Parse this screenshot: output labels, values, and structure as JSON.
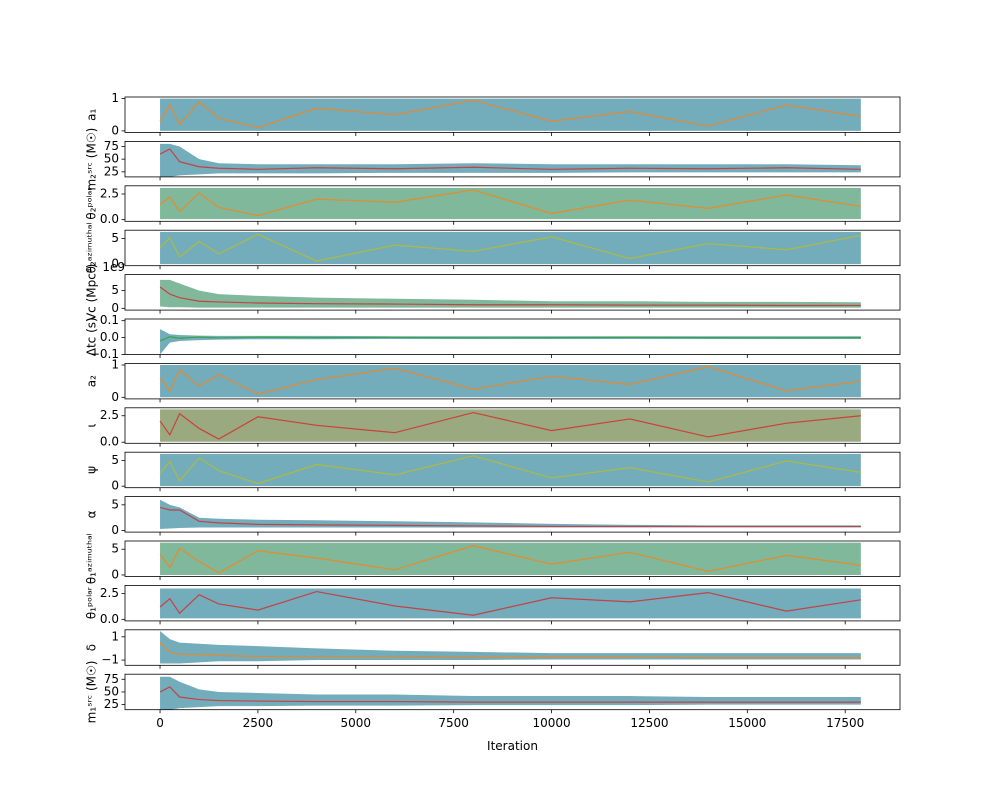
{
  "chart_data": [
    {
      "type": "band",
      "ylabel": "a₁",
      "x": [
        0,
        250,
        500,
        1000,
        1500,
        2500,
        4000,
        6000,
        8000,
        10000,
        12000,
        14000,
        16000,
        17900
      ],
      "upper": [
        1,
        1,
        1,
        1,
        1,
        1,
        1,
        1,
        1,
        1,
        1,
        1,
        1,
        1
      ],
      "lower": [
        0,
        0,
        0,
        0,
        0,
        0,
        0,
        0,
        0,
        0,
        0,
        0,
        0,
        0
      ],
      "values": [
        0.3,
        0.8,
        0.2,
        0.9,
        0.4,
        0.1,
        0.7,
        0.5,
        0.95,
        0.3,
        0.6,
        0.15,
        0.8,
        0.45
      ],
      "color": "#5a9fb0",
      "line_color": "#ff7f0e",
      "ylim": [
        -0.05,
        1.05
      ],
      "yticks": [
        0,
        1
      ]
    },
    {
      "type": "band",
      "ylabel": "m₂ˢʳᶜ (M☉)",
      "x": [
        0,
        250,
        500,
        1000,
        1500,
        2500,
        4000,
        6000,
        8000,
        10000,
        12000,
        14000,
        16000,
        17900
      ],
      "upper": [
        80,
        80,
        75,
        50,
        42,
        40,
        40,
        40,
        42,
        40,
        40,
        40,
        40,
        38
      ],
      "lower": [
        15,
        15,
        18,
        20,
        22,
        22,
        22,
        23,
        23,
        23,
        24,
        24,
        24,
        24
      ],
      "values": [
        60,
        70,
        45,
        35,
        32,
        30,
        33,
        31,
        34,
        30,
        32,
        31,
        33,
        30
      ],
      "color": "#5a9fb0",
      "line_color": "#d62728",
      "ylim": [
        15,
        85
      ],
      "yticks": [
        25,
        50,
        75
      ]
    },
    {
      "type": "band",
      "ylabel": "θ₂ᵖᵒˡᵃʳ",
      "x": [
        0,
        250,
        500,
        1000,
        1500,
        2500,
        4000,
        6000,
        8000,
        10000,
        12000,
        14000,
        16000,
        17900
      ],
      "upper": [
        3.1,
        3.1,
        3.1,
        3.1,
        3.1,
        3.1,
        3.1,
        3.1,
        3.1,
        3.1,
        3.1,
        3.1,
        3.1,
        3.1
      ],
      "lower": [
        0.05,
        0.05,
        0.05,
        0.05,
        0.05,
        0.05,
        0.05,
        0.05,
        0.05,
        0.05,
        0.05,
        0.05,
        0.05,
        0.05
      ],
      "values": [
        1.5,
        2.2,
        0.8,
        2.6,
        1.2,
        0.4,
        2.0,
        1.7,
        2.9,
        0.6,
        1.9,
        1.1,
        2.4,
        1.3
      ],
      "color": "#6aab8a",
      "line_color": "#ff7f0e",
      "ylim": [
        -0.16,
        3.3
      ],
      "yticks": [
        {
          "value": 0,
          "label": "0.0"
        },
        2.5
      ]
    },
    {
      "type": "band",
      "ylabel": "θ₂ᵃᶻⁱᵐᵘᵗʰᵃˡ",
      "x": [
        0,
        250,
        500,
        1000,
        1500,
        2500,
        4000,
        6000,
        8000,
        10000,
        12000,
        14000,
        16000,
        17900
      ],
      "upper": [
        6.28,
        6.28,
        6.28,
        6.28,
        6.28,
        6.28,
        6.28,
        6.28,
        6.28,
        6.28,
        6.28,
        6.28,
        6.28,
        6.28
      ],
      "lower": [
        0,
        0,
        0,
        0,
        0,
        0,
        0,
        0,
        0,
        0,
        0,
        0,
        0,
        0
      ],
      "values": [
        3.2,
        5.1,
        1.4,
        4.4,
        2.0,
        5.8,
        0.6,
        3.7,
        2.5,
        5.3,
        1.1,
        4.0,
        2.8,
        5.6
      ],
      "color": "#5a9fb0",
      "line_color": "#bcbd22",
      "ylim": [
        -0.3,
        6.6
      ],
      "yticks": [
        0,
        5
      ]
    },
    {
      "type": "band",
      "ylabel": "Vc (Mpc³)",
      "offset_text": "1e9",
      "x": [
        0,
        250,
        500,
        1000,
        1500,
        2500,
        4000,
        6000,
        8000,
        10000,
        12000,
        14000,
        16000,
        17900
      ],
      "upper": [
        8,
        8,
        7,
        5,
        4,
        3.5,
        3,
        2.7,
        2.4,
        2,
        2,
        1.8,
        1.8,
        1.7
      ],
      "lower": [
        0.5,
        0.3,
        0.3,
        0.2,
        0.2,
        0.2,
        0.2,
        0.2,
        0.2,
        0.2,
        0.2,
        0.2,
        0.2,
        0.2
      ],
      "values": [
        6,
        4,
        3,
        2,
        1.8,
        1.5,
        1.3,
        1.2,
        1,
        1,
        0.9,
        0.9,
        0.8,
        0.8
      ],
      "color": "#6aab8a",
      "line_color": "#d62728",
      "ylim": [
        -0.5,
        9.5
      ],
      "yticks": [
        0,
        5
      ]
    },
    {
      "type": "band",
      "ylabel": "Δtc (s)",
      "x": [
        0,
        250,
        500,
        1000,
        1500,
        2500,
        4000,
        6000,
        8000,
        10000,
        12000,
        14000,
        16000,
        17900
      ],
      "upper": [
        0.05,
        0.02,
        0.015,
        0.012,
        0.01,
        0.01,
        0.01,
        0.008,
        0.008,
        0.008,
        0.008,
        0.008,
        0.008,
        0.008
      ],
      "lower": [
        -0.1,
        -0.03,
        -0.02,
        -0.015,
        -0.012,
        -0.01,
        -0.01,
        -0.008,
        -0.008,
        -0.008,
        -0.008,
        -0.008,
        -0.008,
        -0.008
      ],
      "values": [
        -0.02,
        0.005,
        -0.004,
        0.003,
        -0.002,
        0.002,
        0,
        0.001,
        -0.001,
        0,
        0.001,
        0,
        -0.001,
        0
      ],
      "color": "#5a9fb0",
      "line_color": "#2ca02c",
      "ylim": [
        -0.1,
        0.11
      ],
      "yticks": [
        0.1,
        {
          "value": 0,
          "label": "0.0"
        },
        {
          "value": -0.1,
          "label": "−0.1"
        }
      ]
    },
    {
      "type": "band",
      "ylabel": "a₂",
      "x": [
        0,
        250,
        500,
        1000,
        1500,
        2500,
        4000,
        6000,
        8000,
        10000,
        12000,
        14000,
        16000,
        17900
      ],
      "upper": [
        1,
        1,
        1,
        1,
        1,
        1,
        1,
        1,
        1,
        1,
        1,
        1,
        1,
        1
      ],
      "lower": [
        0,
        0,
        0,
        0,
        0,
        0,
        0,
        0,
        0,
        0,
        0,
        0,
        0,
        0
      ],
      "values": [
        0.6,
        0.2,
        0.85,
        0.35,
        0.7,
        0.1,
        0.55,
        0.9,
        0.25,
        0.65,
        0.4,
        0.95,
        0.2,
        0.5
      ],
      "color": "#5a9fb0",
      "line_color": "#ff7f0e",
      "ylim": [
        -0.05,
        1.05
      ],
      "yticks": [
        0,
        1
      ]
    },
    {
      "type": "band",
      "ylabel": "ι",
      "x": [
        0,
        250,
        500,
        1000,
        1500,
        2500,
        4000,
        6000,
        8000,
        10000,
        12000,
        14000,
        16000,
        17900
      ],
      "upper": [
        3.1,
        3.1,
        3.1,
        3.1,
        3.1,
        3.1,
        3.1,
        3.1,
        3.1,
        3.1,
        3.1,
        3.1,
        3.1,
        3.1
      ],
      "lower": [
        0.05,
        0.05,
        0.05,
        0.05,
        0.05,
        0.05,
        0.05,
        0.05,
        0.05,
        0.05,
        0.05,
        0.05,
        0.05,
        0.05
      ],
      "values": [
        2.0,
        0.7,
        2.7,
        1.3,
        0.3,
        2.4,
        1.6,
        0.9,
        2.8,
        1.1,
        2.2,
        0.5,
        1.8,
        2.5
      ],
      "color": "#8a9a6a",
      "line_color": "#d62728",
      "ylim": [
        -0.1,
        3.25
      ],
      "yticks": [
        {
          "value": 0,
          "label": "0.0"
        },
        2.5
      ]
    },
    {
      "type": "band",
      "ylabel": "ψ",
      "x": [
        0,
        250,
        500,
        1000,
        1500,
        2500,
        4000,
        6000,
        8000,
        10000,
        12000,
        14000,
        16000,
        17900
      ],
      "upper": [
        6.28,
        6.28,
        6.28,
        6.28,
        6.28,
        6.28,
        6.28,
        6.28,
        6.28,
        6.28,
        6.28,
        6.28,
        6.28,
        6.28
      ],
      "lower": [
        0,
        0,
        0,
        0,
        0,
        0,
        0,
        0,
        0,
        0,
        0,
        0,
        0,
        0
      ],
      "values": [
        2.5,
        4.8,
        1.0,
        5.5,
        3.0,
        0.5,
        4.2,
        2.2,
        5.9,
        1.6,
        3.6,
        0.8,
        4.9,
        2.7
      ],
      "color": "#5a9fb0",
      "line_color": "#bcbd22",
      "ylim": [
        -0.3,
        6.6
      ],
      "yticks": [
        0,
        5
      ]
    },
    {
      "type": "band",
      "ylabel": "α",
      "x": [
        0,
        250,
        500,
        1000,
        1500,
        2500,
        4000,
        6000,
        8000,
        10000,
        12000,
        14000,
        16000,
        17900
      ],
      "upper": [
        6,
        5,
        4.5,
        2.5,
        2.3,
        2.1,
        2,
        1.8,
        1.6,
        1.3,
        1.1,
        1,
        1,
        1
      ],
      "lower": [
        0.3,
        0.4,
        0.5,
        0.6,
        0.6,
        0.6,
        0.6,
        0.6,
        0.6,
        0.6,
        0.6,
        0.6,
        0.6,
        0.6
      ],
      "values": [
        4.5,
        4,
        4,
        1.8,
        1.5,
        1.2,
        1.1,
        1,
        0.9,
        0.8,
        0.8,
        0.8,
        0.8,
        0.8
      ],
      "color": "#5a9fb0",
      "line_color": "#d62728",
      "ylim": [
        -0.3,
        6.6
      ],
      "yticks": [
        0,
        5
      ]
    },
    {
      "type": "band",
      "ylabel": "θ₁ᵃᶻⁱᵐᵘᵗʰᵃˡ",
      "x": [
        0,
        250,
        500,
        1000,
        1500,
        2500,
        4000,
        6000,
        8000,
        10000,
        12000,
        14000,
        16000,
        17900
      ],
      "upper": [
        6.28,
        6.28,
        6.28,
        6.28,
        6.28,
        6.28,
        6.28,
        6.28,
        6.28,
        6.28,
        6.28,
        6.28,
        6.28,
        6.28
      ],
      "lower": [
        0,
        0,
        0,
        0,
        0,
        0,
        0,
        0,
        0,
        0,
        0,
        0,
        0,
        0
      ],
      "values": [
        4.0,
        1.5,
        5.2,
        2.6,
        0.4,
        4.7,
        3.3,
        1.0,
        5.7,
        2.1,
        4.4,
        0.7,
        3.8,
        1.9
      ],
      "color": "#6aab8a",
      "line_color": "#ff7f0e",
      "ylim": [
        -0.3,
        6.6
      ],
      "yticks": [
        0,
        5
      ]
    },
    {
      "type": "band",
      "ylabel": "θ₁ᵖᵒˡᵃʳ",
      "x": [
        0,
        250,
        500,
        1000,
        1500,
        2500,
        4000,
        6000,
        8000,
        10000,
        12000,
        14000,
        16000,
        17900
      ],
      "upper": [
        3.0,
        3.0,
        3.0,
        3.0,
        3.0,
        3.0,
        3.0,
        3.0,
        3.0,
        3.0,
        3.0,
        3.0,
        3.0,
        3.0
      ],
      "lower": [
        0.1,
        0.1,
        0.1,
        0.1,
        0.1,
        0.1,
        0.1,
        0.1,
        0.1,
        0.1,
        0.1,
        0.1,
        0.1,
        0.1
      ],
      "values": [
        1.2,
        2.0,
        0.6,
        2.4,
        1.5,
        0.9,
        2.7,
        1.3,
        0.4,
        2.1,
        1.7,
        2.6,
        0.8,
        1.9
      ],
      "color": "#5a9fb0",
      "line_color": "#d62728",
      "ylim": [
        -0.15,
        3.3
      ],
      "yticks": [
        {
          "value": 0,
          "label": "0.0"
        },
        2.5
      ]
    },
    {
      "type": "band",
      "ylabel": "δ",
      "x": [
        0,
        250,
        500,
        1000,
        1500,
        2500,
        4000,
        6000,
        8000,
        10000,
        12000,
        14000,
        16000,
        17900
      ],
      "upper": [
        1.5,
        0.8,
        0.5,
        0.4,
        0.3,
        0.2,
        0,
        -0.2,
        -0.3,
        -0.4,
        -0.4,
        -0.4,
        -0.4,
        -0.4
      ],
      "lower": [
        -1.3,
        -1.3,
        -1.3,
        -1.2,
        -1.1,
        -1.1,
        -1,
        -1,
        -1,
        -0.95,
        -0.95,
        -0.95,
        -0.95,
        -0.95
      ],
      "values": [
        0.5,
        -0.3,
        -0.5,
        -0.5,
        -0.6,
        -0.7,
        -0.7,
        -0.7,
        -0.75,
        -0.75,
        -0.75,
        -0.8,
        -0.8,
        -0.8
      ],
      "color": "#5a9fb0",
      "line_color": "#ff7f0e",
      "ylim": [
        -1.45,
        1.6
      ],
      "yticks": [
        1,
        {
          "value": -1,
          "label": "−1"
        }
      ]
    },
    {
      "type": "band",
      "ylabel": "m₁ˢʳᶜ (M☉)",
      "xlabel": "Iteration",
      "x": [
        0,
        250,
        500,
        1000,
        1500,
        2500,
        4000,
        6000,
        8000,
        10000,
        12000,
        14000,
        16000,
        17900
      ],
      "upper": [
        80,
        80,
        70,
        55,
        50,
        48,
        45,
        45,
        42,
        42,
        42,
        40,
        40,
        40
      ],
      "lower": [
        15,
        15,
        18,
        20,
        22,
        22,
        23,
        23,
        24,
        24,
        24,
        25,
        25,
        25
      ],
      "values": [
        50,
        60,
        40,
        35,
        33,
        32,
        31,
        31,
        30,
        30,
        30,
        30,
        30,
        30
      ],
      "color": "#5a9fb0",
      "line_color": "#d62728",
      "ylim": [
        15,
        85
      ],
      "yticks": [
        25,
        50,
        75
      ],
      "xlim": [
        -895,
        18900
      ],
      "xticks": [
        0,
        2500,
        5000,
        7500,
        10000,
        12500,
        15000,
        17500
      ]
    }
  ]
}
